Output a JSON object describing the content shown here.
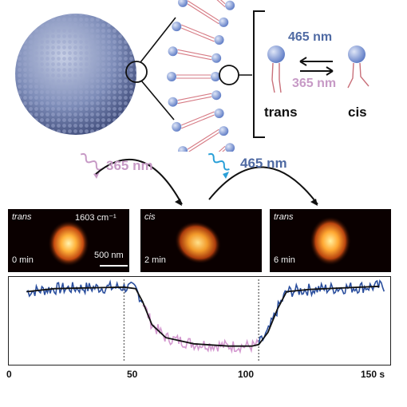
{
  "top": {
    "wavelength_a": "465 nm",
    "wavelength_b": "365 nm",
    "state_left": "trans",
    "state_right": "cis"
  },
  "middle": {
    "uv_label": "365 nm",
    "blue_label": "465 nm"
  },
  "panels": [
    {
      "state": "trans",
      "time": "0 min",
      "extra": "1603 cm⁻¹",
      "scale": "500 nm"
    },
    {
      "state": "cis",
      "time": "2 min"
    },
    {
      "state": "trans",
      "time": "6 min"
    }
  ],
  "colors": {
    "blue_text": "#4f6aa3",
    "pink_text": "#c79ac6",
    "trace_blue": "#2b4f9e",
    "trace_pink": "#d49ad0"
  },
  "chart_data": {
    "type": "line",
    "x_ticks": [
      "0",
      "50",
      "100",
      "150 s"
    ],
    "xlim": [
      0,
      165
    ],
    "markers": [
      50,
      108
    ],
    "series": [
      {
        "values": [
          [
            8,
            0.88
          ],
          [
            20,
            0.92
          ],
          [
            35,
            0.93
          ],
          [
            50,
            0.94
          ],
          [
            55,
            0.92
          ],
          [
            58,
            0.75
          ],
          [
            62,
            0.45
          ],
          [
            68,
            0.28
          ],
          [
            80,
            0.2
          ],
          [
            95,
            0.17
          ],
          [
            105,
            0.17
          ],
          [
            108,
            0.19
          ],
          [
            112,
            0.35
          ],
          [
            116,
            0.65
          ],
          [
            120,
            0.88
          ],
          [
            130,
            0.91
          ],
          [
            145,
            0.93
          ],
          [
            160,
            0.95
          ]
        ]
      }
    ]
  }
}
